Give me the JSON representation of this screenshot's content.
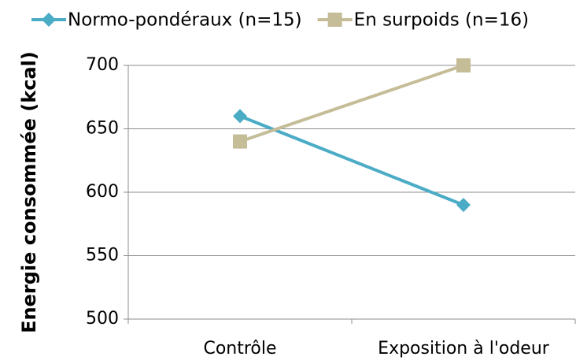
{
  "chart_data": {
    "type": "line",
    "ylabel": "Energie consommée (kcal)",
    "categories": [
      "Contrôle",
      "Exposition à l'odeur"
    ],
    "series": [
      {
        "name": "Normo-pondéraux (n=15)",
        "color": "#4bacc6",
        "marker": "diamond",
        "values": [
          660,
          590
        ]
      },
      {
        "name": "En surpoids (n=16)",
        "color": "#c4bd97",
        "marker": "square",
        "values": [
          640,
          700
        ]
      }
    ],
    "ylim": [
      500,
      700
    ],
    "yticks": [
      500,
      550,
      600,
      650,
      700
    ],
    "grid": true,
    "legend": "top"
  }
}
